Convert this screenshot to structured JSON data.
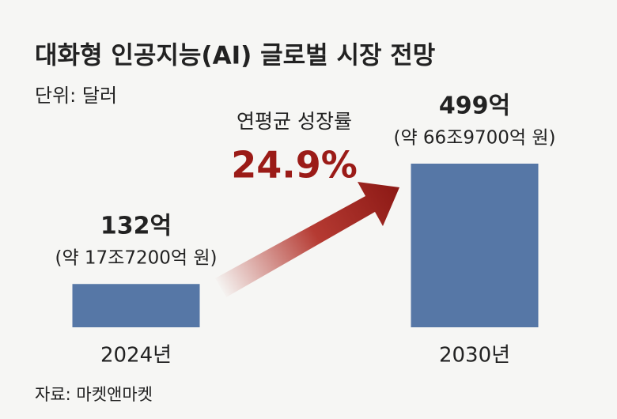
{
  "chart_data": {
    "type": "bar",
    "title": "대화형 인공지능(AI) 글로벌 시장 전망",
    "subtitle": "단위: 달러",
    "categories": [
      "2024년",
      "2030년"
    ],
    "values": [
      132,
      499
    ],
    "value_labels": [
      "132억",
      "499억"
    ],
    "value_notes": [
      "(약 17조7200억 원)",
      "(약 66조9700억 원)"
    ],
    "color": "#5677a6",
    "annotation": {
      "label": "연평균 성장률",
      "value": "24.9%"
    },
    "source": "자료: 마켓앤마켓"
  }
}
